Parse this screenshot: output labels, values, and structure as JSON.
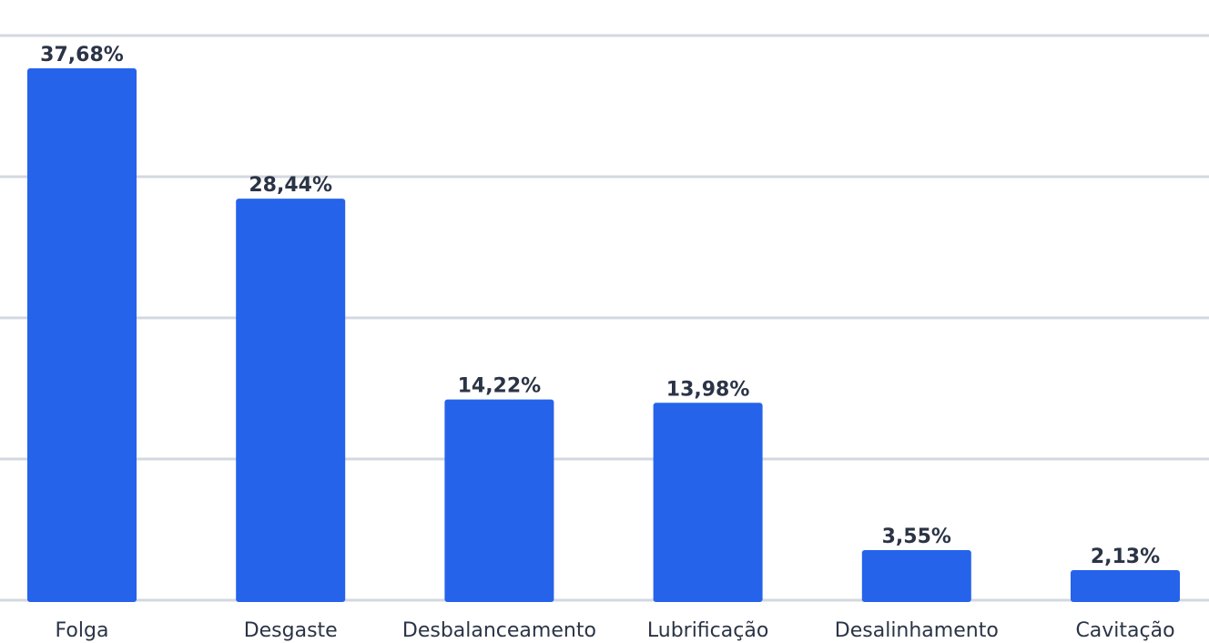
{
  "chart_data": {
    "type": "bar",
    "categories": [
      "Folga",
      "Desgaste",
      "Desbalanceamento",
      "Lubrificação",
      "Desalinhamento",
      "Cavitação"
    ],
    "values": [
      37.68,
      28.44,
      14.22,
      13.98,
      3.55,
      2.13
    ],
    "value_labels": [
      "37,68%",
      "28,44%",
      "14,22%",
      "13,98%",
      "3,55%",
      "2,13%"
    ],
    "ylim": [
      0,
      40
    ],
    "y_gridlines": [
      0,
      10,
      20,
      30,
      40
    ],
    "grid": true,
    "bar_color": "#2563eb",
    "label_color": "#2b3446",
    "grid_color": "#d3d8e0"
  }
}
